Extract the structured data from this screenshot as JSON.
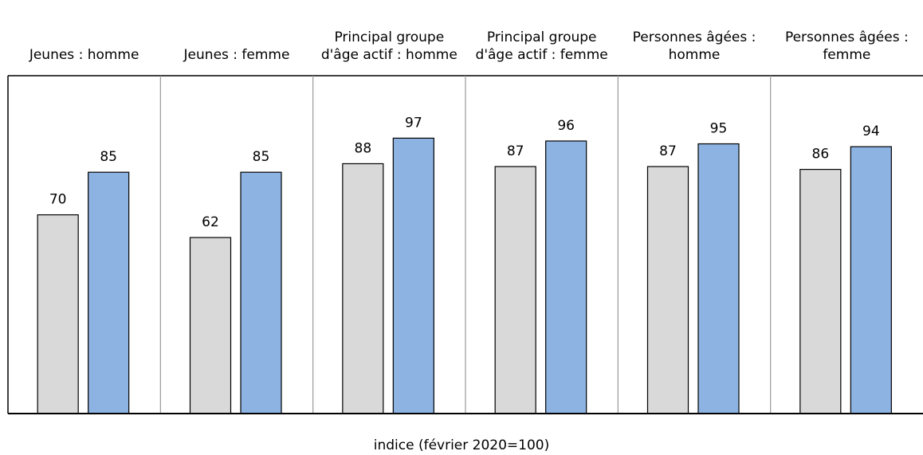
{
  "chart_data": {
    "type": "bar",
    "categories": [
      "Jeunes : homme",
      "Jeunes : femme",
      "Principal groupe d'âge actif : homme",
      "Principal groupe d'âge actif : femme",
      "Personnes âgées : homme",
      "Personnes âgées : femme"
    ],
    "series": [
      {
        "color": "#d9d9d9",
        "values": [
          70,
          62,
          88,
          87,
          87,
          86
        ]
      },
      {
        "color": "#8db3e2",
        "values": [
          85,
          85,
          97,
          96,
          95,
          94
        ]
      }
    ],
    "ylim": [
      0,
      119
    ],
    "xlabel": "indice (février 2020=100)"
  }
}
